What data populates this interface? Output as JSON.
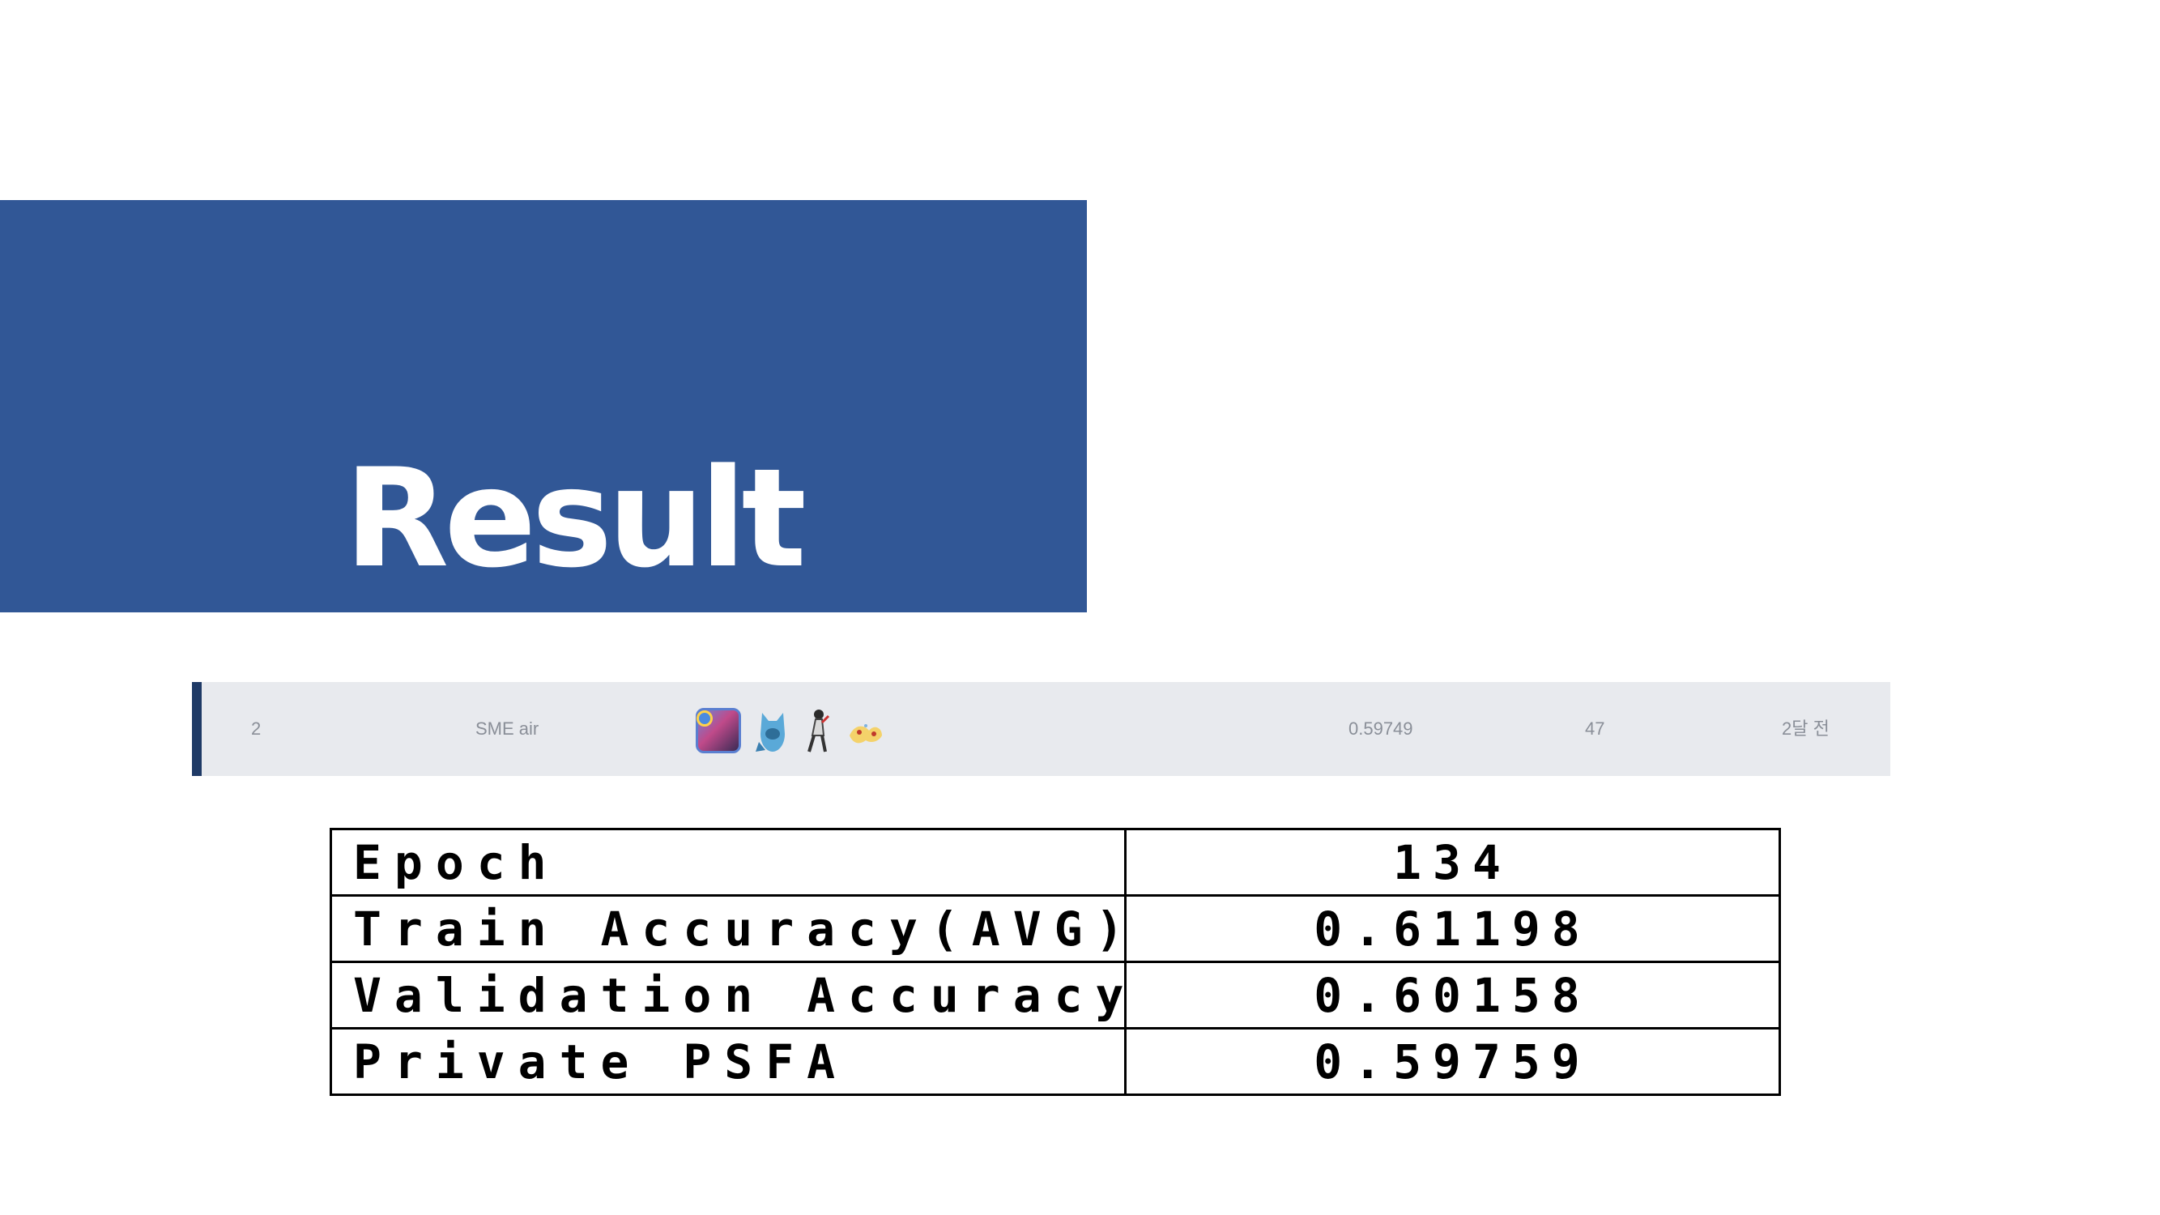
{
  "slide": {
    "title": "Result"
  },
  "leaderboard_row": {
    "rank": "2",
    "team_name": "SME air",
    "members_icons": [
      "member-avatar-1-icon",
      "member-avatar-2-icon",
      "member-avatar-3-icon",
      "member-avatar-4-icon"
    ],
    "score": "0.59749",
    "entries": "47",
    "last_submission": "2달 전",
    "accent_color": "#1f3a66",
    "background_color": "#e8eaee"
  },
  "results_table": {
    "rows": [
      {
        "label": "Epoch",
        "value": "134"
      },
      {
        "label": "Train Accuracy(AVG)",
        "value": "0.61198"
      },
      {
        "label": "Validation Accuracy",
        "value": "0.60158"
      },
      {
        "label": "Private PSFA",
        "value": "0.59759"
      }
    ]
  },
  "colors": {
    "title_block": "#315796",
    "title_text": "#ffffff"
  }
}
